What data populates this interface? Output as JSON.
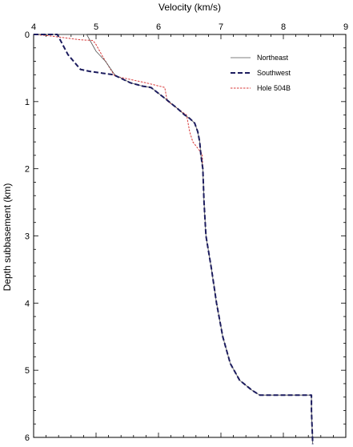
{
  "chart_data": {
    "type": "line",
    "xlabel": "Velocity (km/s)",
    "ylabel": "Depth subbasement (km)",
    "xlim": [
      4,
      9
    ],
    "ylim": [
      0,
      6
    ],
    "x_ticks": [
      "4",
      "5",
      "6",
      "7",
      "8",
      "9"
    ],
    "y_ticks": [
      "0",
      "1",
      "2",
      "3",
      "4",
      "5",
      "6"
    ],
    "x_axis_position": "top",
    "y_axis_inverted": true,
    "grid": false,
    "legend_position": "top-right",
    "series": [
      {
        "name": "Northeast",
        "style": "solid-thin",
        "color": "#555555",
        "points": [
          [
            4.0,
            0.0
          ],
          [
            4.85,
            0.0
          ],
          [
            5.0,
            0.25
          ],
          [
            5.15,
            0.4
          ],
          [
            5.3,
            0.6
          ],
          [
            5.55,
            0.72
          ],
          [
            5.75,
            0.77
          ],
          [
            5.88,
            0.79
          ],
          [
            6.1,
            0.95
          ],
          [
            6.3,
            1.1
          ],
          [
            6.42,
            1.2
          ],
          [
            6.5,
            1.25
          ],
          [
            6.58,
            1.32
          ],
          [
            6.63,
            1.45
          ],
          [
            6.66,
            1.6
          ],
          [
            6.68,
            1.8
          ],
          [
            6.71,
            2.0
          ],
          [
            6.73,
            2.5
          ],
          [
            6.76,
            3.0
          ],
          [
            6.85,
            3.5
          ],
          [
            6.93,
            4.0
          ],
          [
            7.03,
            4.5
          ],
          [
            7.15,
            4.9
          ],
          [
            7.3,
            5.15
          ],
          [
            7.5,
            5.3
          ],
          [
            7.62,
            5.37
          ],
          [
            8.45,
            5.37
          ],
          [
            8.45,
            5.6
          ],
          [
            8.47,
            6.1
          ]
        ]
      },
      {
        "name": "Southwest",
        "style": "dashed-thick",
        "color": "#1c1c5e",
        "points": [
          [
            4.0,
            0.0
          ],
          [
            4.38,
            0.0
          ],
          [
            4.55,
            0.3
          ],
          [
            4.75,
            0.52
          ],
          [
            4.9,
            0.55
          ],
          [
            5.28,
            0.6
          ],
          [
            5.55,
            0.72
          ],
          [
            5.75,
            0.77
          ],
          [
            5.88,
            0.79
          ],
          [
            6.1,
            0.95
          ],
          [
            6.3,
            1.1
          ],
          [
            6.42,
            1.2
          ],
          [
            6.5,
            1.25
          ],
          [
            6.58,
            1.32
          ],
          [
            6.63,
            1.45
          ],
          [
            6.66,
            1.6
          ],
          [
            6.68,
            1.8
          ],
          [
            6.71,
            2.0
          ],
          [
            6.73,
            2.5
          ],
          [
            6.76,
            3.0
          ],
          [
            6.85,
            3.5
          ],
          [
            6.93,
            4.0
          ],
          [
            7.03,
            4.5
          ],
          [
            7.15,
            4.9
          ],
          [
            7.3,
            5.15
          ],
          [
            7.5,
            5.3
          ],
          [
            7.62,
            5.37
          ],
          [
            8.45,
            5.37
          ],
          [
            8.45,
            5.6
          ],
          [
            8.47,
            6.1
          ]
        ]
      },
      {
        "name": "Hole 504B",
        "style": "dotted-thin",
        "color": "#d83a3a",
        "points": [
          [
            4.0,
            0.0
          ],
          [
            4.25,
            0.02
          ],
          [
            4.75,
            0.08
          ],
          [
            4.95,
            0.09
          ],
          [
            5.0,
            0.15
          ],
          [
            5.1,
            0.32
          ],
          [
            5.3,
            0.62
          ],
          [
            5.8,
            0.72
          ],
          [
            6.1,
            0.79
          ],
          [
            6.14,
            0.99
          ],
          [
            6.3,
            1.1
          ],
          [
            6.45,
            1.2
          ],
          [
            6.5,
            1.45
          ],
          [
            6.55,
            1.6
          ],
          [
            6.65,
            1.72
          ],
          [
            6.7,
            1.78
          ],
          [
            6.71,
            2.0
          ]
        ]
      }
    ]
  }
}
